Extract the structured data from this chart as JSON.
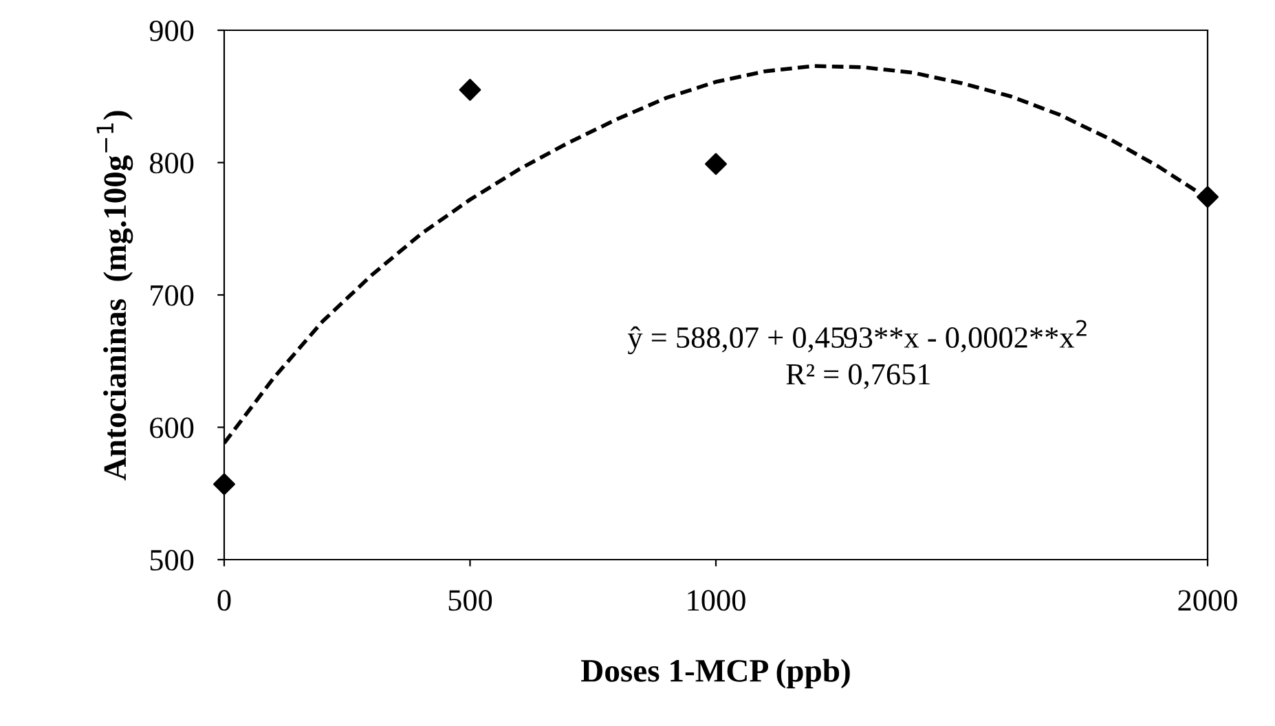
{
  "chart_data": {
    "type": "scatter",
    "xlabel": "Doses 1-MCP (ppb)",
    "ylabel": "Antocianinas  (mg.100g$^{−1}$)",
    "xlim": [
      0,
      2000
    ],
    "xticks": [
      0,
      500,
      1000,
      2000
    ],
    "ylim": [
      500,
      900
    ],
    "yticks": [
      500,
      600,
      700,
      800,
      900
    ],
    "grid": false,
    "legend": false,
    "series": [
      {
        "color": "#000000",
        "marker": "diamond",
        "x": [
          0,
          500,
          1000,
          2000
        ],
        "values": [
          557,
          855,
          799,
          774
        ]
      },
      {
        "type": "line",
        "color": "#000000",
        "line_style": "dashed",
        "marker": "none",
        "x": [
          0,
          100,
          200,
          300,
          400,
          500,
          600,
          700,
          800,
          900,
          1000,
          1100,
          1200,
          1300,
          1400,
          1500,
          1600,
          1700,
          1800,
          1900,
          2000
        ],
        "values": [
          588,
          637,
          680,
          715,
          746,
          772,
          795,
          815,
          833,
          849,
          861,
          869,
          873,
          872,
          868,
          860,
          850,
          836,
          818,
          797,
          773
        ]
      }
    ],
    "annotations": [
      "ŷ = 588,07 + 0,4593**x - 0,0002**x$^{2}$",
      "R² = 0,7651"
    ]
  }
}
